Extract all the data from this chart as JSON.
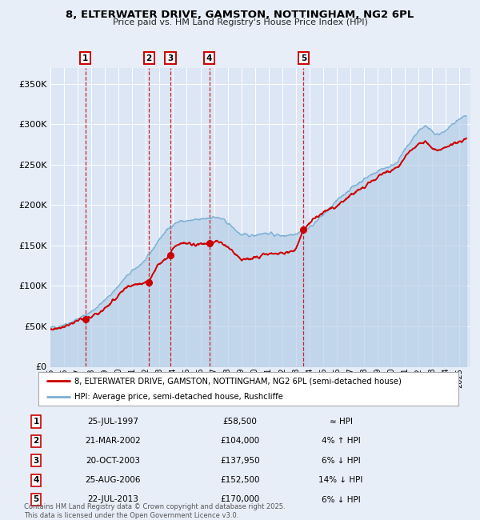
{
  "title": "8, ELTERWATER DRIVE, GAMSTON, NOTTINGHAM, NG2 6PL",
  "subtitle": "Price paid vs. HM Land Registry's House Price Index (HPI)",
  "bg_color": "#e8eef8",
  "plot_bg_color": "#dce6f5",
  "grid_color": "#ffffff",
  "sale_color": "#cc0000",
  "hpi_color": "#7bafd4",
  "hpi_fill_color": "#b8d0e8",
  "ylim": [
    0,
    370000
  ],
  "yticks": [
    0,
    50000,
    100000,
    150000,
    200000,
    250000,
    300000,
    350000
  ],
  "ytick_labels": [
    "£0",
    "£50K",
    "£100K",
    "£150K",
    "£200K",
    "£250K",
    "£300K",
    "£350K"
  ],
  "sales": [
    {
      "num": 1,
      "date_label": "25-JUL-1997",
      "year": 1997.56,
      "price": 58500,
      "hpi_note": "≈ HPI"
    },
    {
      "num": 2,
      "date_label": "21-MAR-2002",
      "year": 2002.22,
      "price": 104000,
      "hpi_note": "4% ↑ HPI"
    },
    {
      "num": 3,
      "date_label": "20-OCT-2003",
      "year": 2003.8,
      "price": 137950,
      "hpi_note": "6% ↓ HPI"
    },
    {
      "num": 4,
      "date_label": "25-AUG-2006",
      "year": 2006.65,
      "price": 152500,
      "hpi_note": "14% ↓ HPI"
    },
    {
      "num": 5,
      "date_label": "22-JUL-2013",
      "year": 2013.56,
      "price": 170000,
      "hpi_note": "6% ↓ HPI"
    }
  ],
  "legend_label_sale": "8, ELTERWATER DRIVE, GAMSTON, NOTTINGHAM, NG2 6PL (semi-detached house)",
  "legend_label_hpi": "HPI: Average price, semi-detached house, Rushcliffe",
  "footer": "Contains HM Land Registry data © Crown copyright and database right 2025.\nThis data is licensed under the Open Government Licence v3.0.",
  "xlim_start": 1995.0,
  "xlim_end": 2025.8,
  "hpi_key_years": [
    1995,
    1995.5,
    1996,
    1996.5,
    1997,
    1997.5,
    1998,
    1998.5,
    1999,
    1999.5,
    2000,
    2000.5,
    2001,
    2001.5,
    2002,
    2002.5,
    2003,
    2003.5,
    2004,
    2004.5,
    2005,
    2005.5,
    2006,
    2006.5,
    2007,
    2007.5,
    2008,
    2008.5,
    2009,
    2009.5,
    2010,
    2010.5,
    2011,
    2011.5,
    2012,
    2012.5,
    2013,
    2013.5,
    2014,
    2014.5,
    2015,
    2015.5,
    2016,
    2016.5,
    2017,
    2017.5,
    2018,
    2018.5,
    2019,
    2019.5,
    2020,
    2020.5,
    2021,
    2021.5,
    2022,
    2022.5,
    2023,
    2023.5,
    2024,
    2024.5,
    2025.5
  ],
  "hpi_key_values": [
    48000,
    49500,
    52000,
    55000,
    59000,
    63000,
    68000,
    75000,
    82000,
    91000,
    100000,
    110000,
    118000,
    125000,
    132000,
    145000,
    158000,
    168000,
    176000,
    180000,
    180000,
    181000,
    182000,
    184000,
    185000,
    183000,
    178000,
    170000,
    163000,
    162000,
    163000,
    165000,
    165000,
    163000,
    162000,
    163000,
    165000,
    168000,
    172000,
    180000,
    188000,
    196000,
    205000,
    213000,
    220000,
    226000,
    232000,
    237000,
    242000,
    246000,
    248000,
    255000,
    268000,
    280000,
    292000,
    298000,
    290000,
    287000,
    292000,
    300000,
    310000
  ],
  "sale_key_years": [
    1995,
    1995.5,
    1996,
    1996.5,
    1997,
    1997.56,
    1998,
    1998.5,
    1999,
    1999.5,
    2000,
    2000.5,
    2001,
    2001.5,
    2002,
    2002.22,
    2002.5,
    2003,
    2003.5,
    2003.8,
    2004,
    2004.5,
    2005,
    2005.5,
    2006,
    2006.65,
    2007,
    2007.3,
    2007.6,
    2008,
    2008.5,
    2009,
    2009.5,
    2010,
    2010.5,
    2011,
    2011.5,
    2012,
    2012.5,
    2013,
    2013.56,
    2014,
    2014.5,
    2015,
    2015.5,
    2016,
    2016.5,
    2017,
    2017.5,
    2018,
    2018.5,
    2019,
    2019.5,
    2020,
    2020.5,
    2021,
    2021.5,
    2022,
    2022.5,
    2023,
    2023.5,
    2024,
    2024.5,
    2025.5
  ],
  "sale_key_values": [
    46000,
    47500,
    50000,
    53000,
    57000,
    58500,
    62000,
    66000,
    72000,
    80000,
    88000,
    96000,
    101000,
    103000,
    104000,
    104000,
    115000,
    128000,
    135000,
    137950,
    148000,
    153000,
    152000,
    151000,
    152000,
    152500,
    153000,
    155000,
    152000,
    148000,
    140000,
    133000,
    132000,
    135000,
    138000,
    140000,
    139000,
    140000,
    142000,
    145000,
    170000,
    178000,
    185000,
    190000,
    195000,
    198000,
    205000,
    212000,
    218000,
    222000,
    228000,
    235000,
    240000,
    242000,
    248000,
    258000,
    268000,
    275000,
    278000,
    270000,
    268000,
    272000,
    276000,
    282000
  ]
}
